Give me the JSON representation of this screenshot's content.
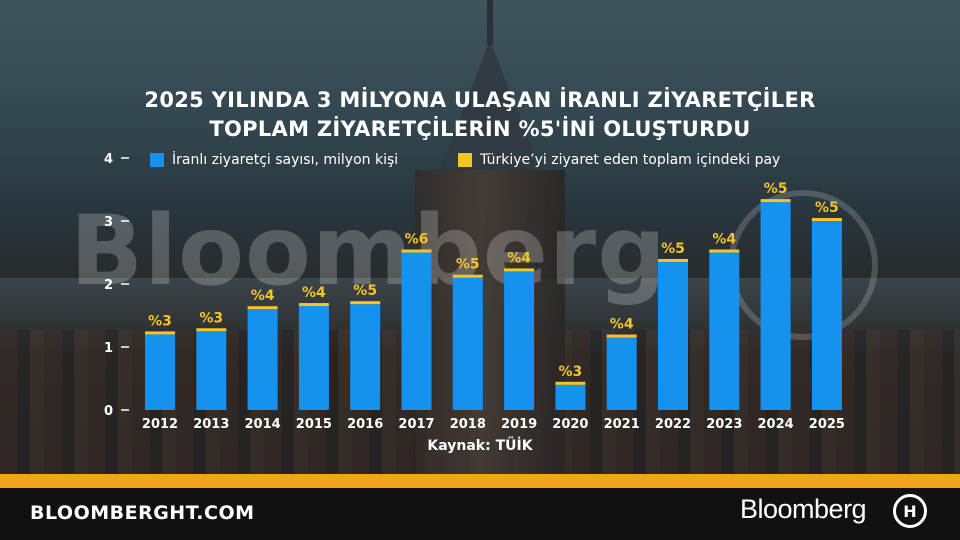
{
  "chart_data": {
    "type": "bar",
    "title_lines": [
      "2025 YILINDA 3 MİLYONA ULAŞAN İRANLI ZİYARETÇİLER",
      "TOPLAM ZİYARETÇİLERİN %5'İNİ OLUŞTURDU"
    ],
    "categories": [
      "2012",
      "2013",
      "2014",
      "2015",
      "2016",
      "2017",
      "2018",
      "2019",
      "2020",
      "2021",
      "2022",
      "2023",
      "2024",
      "2025"
    ],
    "series": [
      {
        "name": "İranlı ziyaretçi sayısı, milyon kişi",
        "values": [
          1.2,
          1.25,
          1.6,
          1.65,
          1.68,
          2.5,
          2.1,
          2.2,
          0.4,
          1.15,
          2.35,
          2.5,
          3.3,
          3.0
        ]
      }
    ],
    "share_labels": [
      "%3",
      "%3",
      "%4",
      "%4",
      "%5",
      "%6",
      "%5",
      "%4",
      "%3",
      "%4",
      "%5",
      "%4",
      "%5",
      "%5"
    ],
    "share_series_name": "Türkiye’yi ziyaret eden toplam içindeki pay",
    "y_ticks": [
      "0",
      "1",
      "2",
      "3",
      "4"
    ],
    "ylim": [
      0,
      4
    ],
    "grid": false,
    "legend_position": "top",
    "source": "Kaynak: TÜİK",
    "colors": {
      "bar": "#1592f0",
      "share": "#f5c425",
      "text": "#ffffff"
    }
  },
  "watermark": "Bloomberg",
  "footer": {
    "site": "BLOOMBERGHT.COM",
    "brand": "Bloomberg",
    "logo_text": "H"
  },
  "colors": {
    "footer_stripe": "#f2a51c",
    "footer_bg": "#111111"
  }
}
